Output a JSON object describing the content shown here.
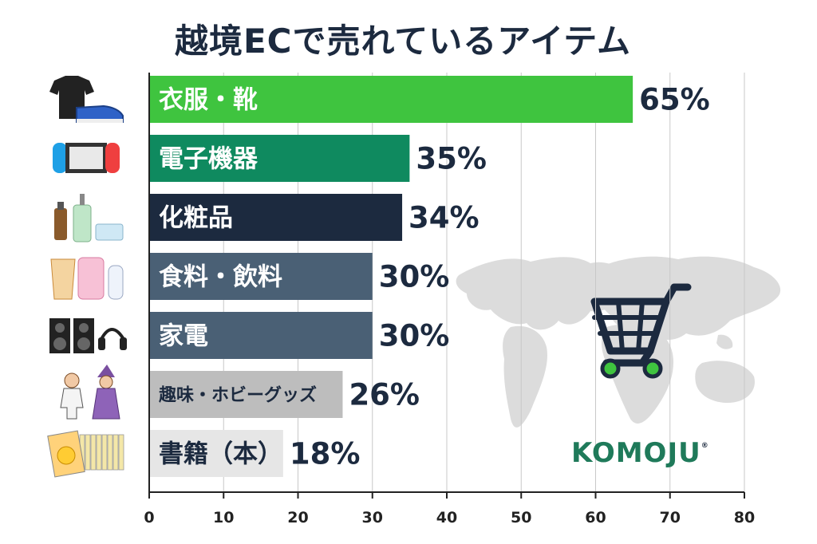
{
  "header": {
    "title": "越境ECで売れているアイテム"
  },
  "brand": {
    "name": "KOMOJU",
    "mark": "®"
  },
  "chart_data": {
    "type": "bar",
    "orientation": "horizontal",
    "title": "越境ECで売れているアイテム",
    "categories": [
      "衣服・靴",
      "電子機器",
      "化粧品",
      "食料・飲料",
      "家電",
      "趣味・ホビーグッズ",
      "書籍（本）"
    ],
    "values": [
      65,
      35,
      34,
      30,
      30,
      26,
      18
    ],
    "value_labels": [
      "65%",
      "35%",
      "34%",
      "30%",
      "30%",
      "26%",
      "18%"
    ],
    "bar_colors": [
      "#3fc43f",
      "#0f8a5f",
      "#1c2a3f",
      "#4a6075",
      "#4a6075",
      "#bdbdbd",
      "#e6e6e6"
    ],
    "label_colors": [
      "#ffffff",
      "#ffffff",
      "#ffffff",
      "#ffffff",
      "#ffffff",
      "#1c2a3f",
      "#1c2a3f"
    ],
    "icons": [
      "tshirt-sneaker-icon",
      "game-console-icon",
      "cosmetics-icon",
      "food-milk-icon",
      "speaker-headphones-icon",
      "hobby-figures-icon",
      "comic-books-icon"
    ],
    "xlim": [
      0,
      80
    ],
    "xticks": [
      0,
      10,
      20,
      30,
      40,
      50,
      60,
      70,
      80
    ],
    "xlabel": "",
    "ylabel": "",
    "grid": true,
    "legend": "none"
  },
  "colors": {
    "title": "#1c2a3f",
    "grid": "#c8c8c8",
    "map": "#dcdcdc",
    "cart": "#1c2a3f",
    "cart_wheel": "#3fc43f"
  }
}
